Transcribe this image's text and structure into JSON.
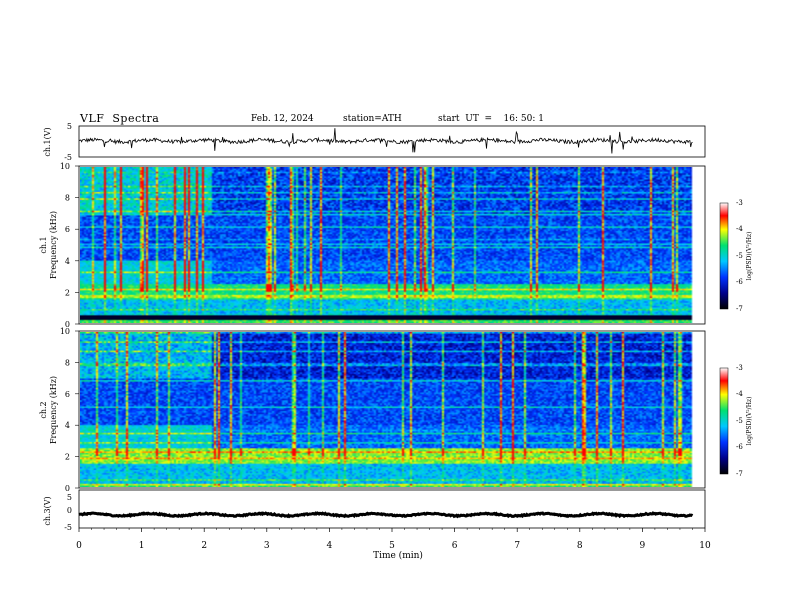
{
  "header": {
    "title": "VLF  Spectra",
    "date": "Feb. 12, 2024",
    "station": "station=ATH",
    "start_ut": "start  UT  =    16: 50: 1"
  },
  "chart_data": [
    {
      "type": "line",
      "panel": "ch1-waveform",
      "ylabel": "ch.1(V)",
      "yticks": [
        "5",
        "-5"
      ],
      "ylim": [
        -5,
        5
      ],
      "x_range_min": [
        0,
        9.8
      ],
      "description_values": "noisy trace near 0 V with sharp spikes",
      "baseline_v": 0.2,
      "noise_v": 0.6
    },
    {
      "type": "heatmap",
      "panel": "ch1-spectrogram",
      "ylabel_top": "ch.1",
      "ylabel": "Frequency  (kHz)",
      "yticks": [
        "0",
        "2",
        "4",
        "6",
        "8",
        "10"
      ],
      "ylim_khz": [
        0,
        10
      ],
      "x_range_min": [
        0,
        9.8
      ],
      "colorbar": {
        "label": "log(PSD)(V²/Hz)",
        "ticks": [
          "-3",
          "-4",
          "-5",
          "-6",
          "-7"
        ],
        "range": [
          -7,
          -3
        ]
      }
    },
    {
      "type": "heatmap",
      "panel": "ch2-spectrogram",
      "ylabel_top": "ch.2",
      "ylabel": "Frequency  (kHz)",
      "yticks": [
        "0",
        "2",
        "4",
        "6",
        "8",
        "10"
      ],
      "ylim_khz": [
        0,
        10
      ],
      "x_range_min": [
        0,
        9.8
      ],
      "colorbar": {
        "label": "log(PSD)(V²/Hz)",
        "ticks": [
          "-3",
          "-4",
          "-5",
          "-6",
          "-7"
        ],
        "range": [
          -7,
          -3
        ]
      }
    },
    {
      "type": "line",
      "panel": "ch3-waveform",
      "ylabel": "ch.3(V)",
      "yticks": [
        "5",
        "0",
        "-5"
      ],
      "ylim": [
        -5,
        5
      ],
      "x_range_min": [
        0,
        9.8
      ],
      "baseline_v": -1.5,
      "noise_v": 0.15
    }
  ],
  "x_axis": {
    "label": "Time  (min)",
    "ticks": [
      "0",
      "1",
      "2",
      "3",
      "4",
      "5",
      "6",
      "7",
      "8",
      "9",
      "10"
    ],
    "range": [
      0,
      10
    ]
  },
  "colors": {
    "c_black": "#000000",
    "c_navy": "#00008b",
    "c_blue": "#0033ff",
    "c_cyan": "#00c8ff",
    "c_green": "#00e070",
    "c_yellow": "#ffff00",
    "c_red": "#ff0000",
    "c_white": "#ffffff"
  }
}
